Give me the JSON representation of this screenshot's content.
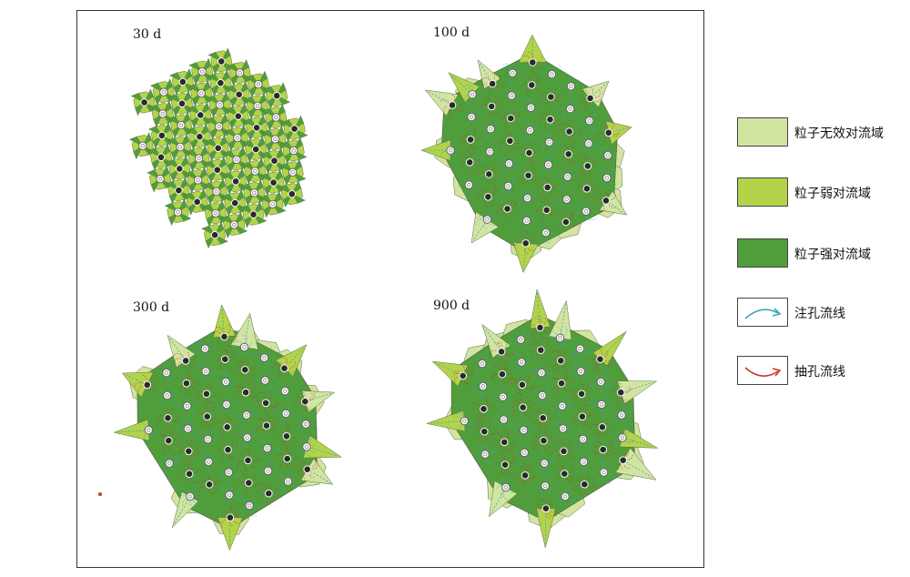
{
  "panels": [
    {
      "id": "p30",
      "label": "30 d",
      "stage": 1
    },
    {
      "id": "p100",
      "label": "100 d",
      "stage": 2
    },
    {
      "id": "p300",
      "label": "300 d",
      "stage": 3
    },
    {
      "id": "p900",
      "label": "900 d",
      "stage": 4
    }
  ],
  "legend": {
    "invalid": {
      "label": "粒子无效对流域",
      "color": "#d2e5a0"
    },
    "weak": {
      "label": "粒子弱对流域",
      "color": "#b3d34a"
    },
    "strong": {
      "label": "粒子强对流域",
      "color": "#4f9e3b"
    },
    "injection": {
      "label": "注孔流线",
      "color": "#3aa5c0"
    },
    "production": {
      "label": "抽孔流线",
      "color": "#c83a2e"
    }
  },
  "colors": {
    "border": "#5c6b4a",
    "producer_well": "#2a2a2a",
    "injector_well": "#ffffff"
  }
}
